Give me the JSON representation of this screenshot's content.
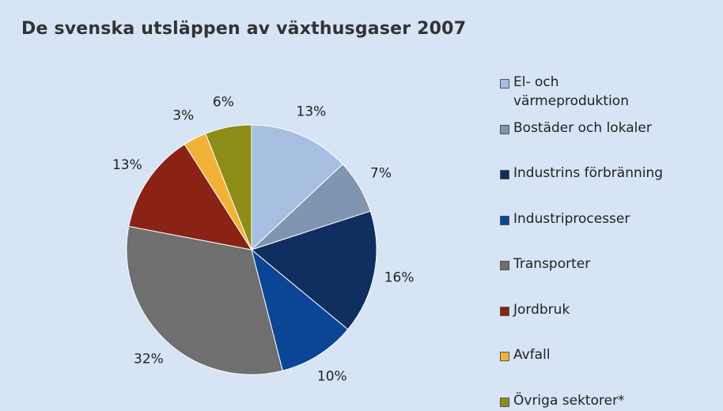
{
  "chart_data": {
    "type": "pie",
    "title": "De svenska utsläppen av växthusgaser 2007",
    "categories": [
      "El- och värmeproduktion",
      "Bostäder och lokaler",
      "Industrins förbränning",
      "Industriprocesser",
      "Transporter",
      "Jordbruk",
      "Avfall",
      "Övriga sektorer*"
    ],
    "values": [
      13,
      7,
      16,
      10,
      32,
      13,
      3,
      6
    ],
    "value_labels": [
      "13%",
      "7%",
      "16%",
      "10%",
      "32%",
      "13%",
      "3%",
      "6%"
    ],
    "colors": [
      "#a6bfe0",
      "#7f95b0",
      "#0e2f5f",
      "#0b4596",
      "#6f6f6f",
      "#8a2315",
      "#f2b237",
      "#8d8c17"
    ],
    "legend": "right"
  }
}
